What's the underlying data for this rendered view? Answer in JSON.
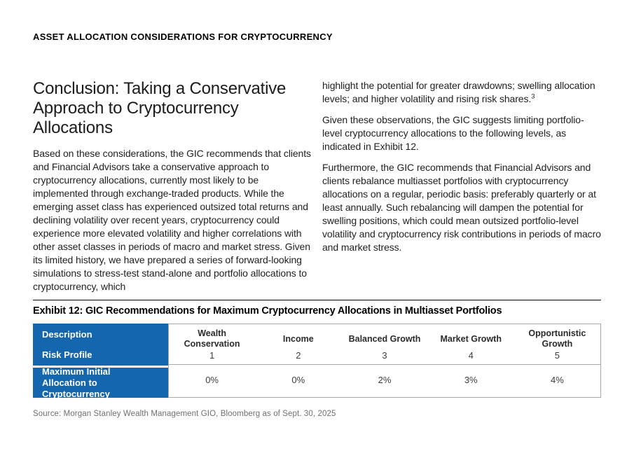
{
  "header": {
    "eyebrow": "ASSET ALLOCATION CONSIDERATIONS FOR CRYPTOCURRENCY"
  },
  "main": {
    "title": "Conclusion: Taking a Conservative Approach to Cryptocurrency Allocations",
    "left_column": {
      "para1": "Based on these considerations, the GIC recommends that clients and Financial Advisors take a conservative approach to cryptocurrency allocations, currently most likely to be implemented through exchange-traded products. While the emerging asset class has experienced outsized total returns and declining volatility over recent years, cryptocurrency could experience more elevated volatility and higher correlations with other asset classes in periods of macro and market stress. Given its limited history, we have prepared a series of forward-looking simulations to stress-test stand-alone and portfolio allocations to cryptocurrency, which"
    },
    "right_column": {
      "para1": "highlight the potential for greater drawdowns; swelling allocation levels; and higher volatility and rising risk shares.",
      "para1_footnote": "3",
      "para2": "Given these observations, the GIC suggests limiting portfolio-level cryptocurrency allocations to the following levels, as indicated in Exhibit 12.",
      "para3": "Furthermore, the GIC recommends that Financial Advisors and clients rebalance multiasset portfolios with cryptocurrency allocations on a regular, periodic basis: preferably quarterly or at least annually. Such rebalancing will dampen the potential for swelling positions, which could mean outsized portfolio-level volatility and cryptocurrency risk contributions in periods of macro and market stress."
    }
  },
  "exhibit": {
    "title": "Exhibit 12: GIC Recommendations for Maximum Cryptocurrency Allocations in Multiasset Portfolios",
    "table": {
      "header_bg": "#1467AF",
      "header_text_color": "#ffffff",
      "row_labels": {
        "description": "Description",
        "risk_profile": "Risk Profile",
        "max_allocation": "Maximum Initial Allocation to Cryptocurrency"
      },
      "columns": [
        {
          "description": "Wealth Conservation",
          "risk_profile": "1",
          "max_allocation": "0%"
        },
        {
          "description": "Income",
          "risk_profile": "2",
          "max_allocation": "0%"
        },
        {
          "description": "Balanced Growth",
          "risk_profile": "3",
          "max_allocation": "2%"
        },
        {
          "description": "Market Growth",
          "risk_profile": "4",
          "max_allocation": "3%"
        },
        {
          "description": "Opportunistic Growth",
          "risk_profile": "5",
          "max_allocation": "4%"
        }
      ]
    },
    "source": "Source: Morgan Stanley Wealth Management GIO, Bloomberg as of Sept. 30, 2025"
  }
}
